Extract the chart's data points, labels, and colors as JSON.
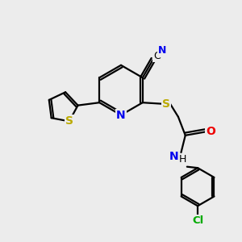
{
  "background_color": "#ececec",
  "figsize": [
    3.0,
    3.0
  ],
  "dpi": 100,
  "atom_colors": {
    "C": "#000000",
    "N": "#0000ee",
    "O": "#ee0000",
    "S_yellow": "#bbaa00",
    "Cl": "#00aa00",
    "H": "#000000"
  },
  "bond_color": "#000000",
  "bond_lw": 1.6
}
